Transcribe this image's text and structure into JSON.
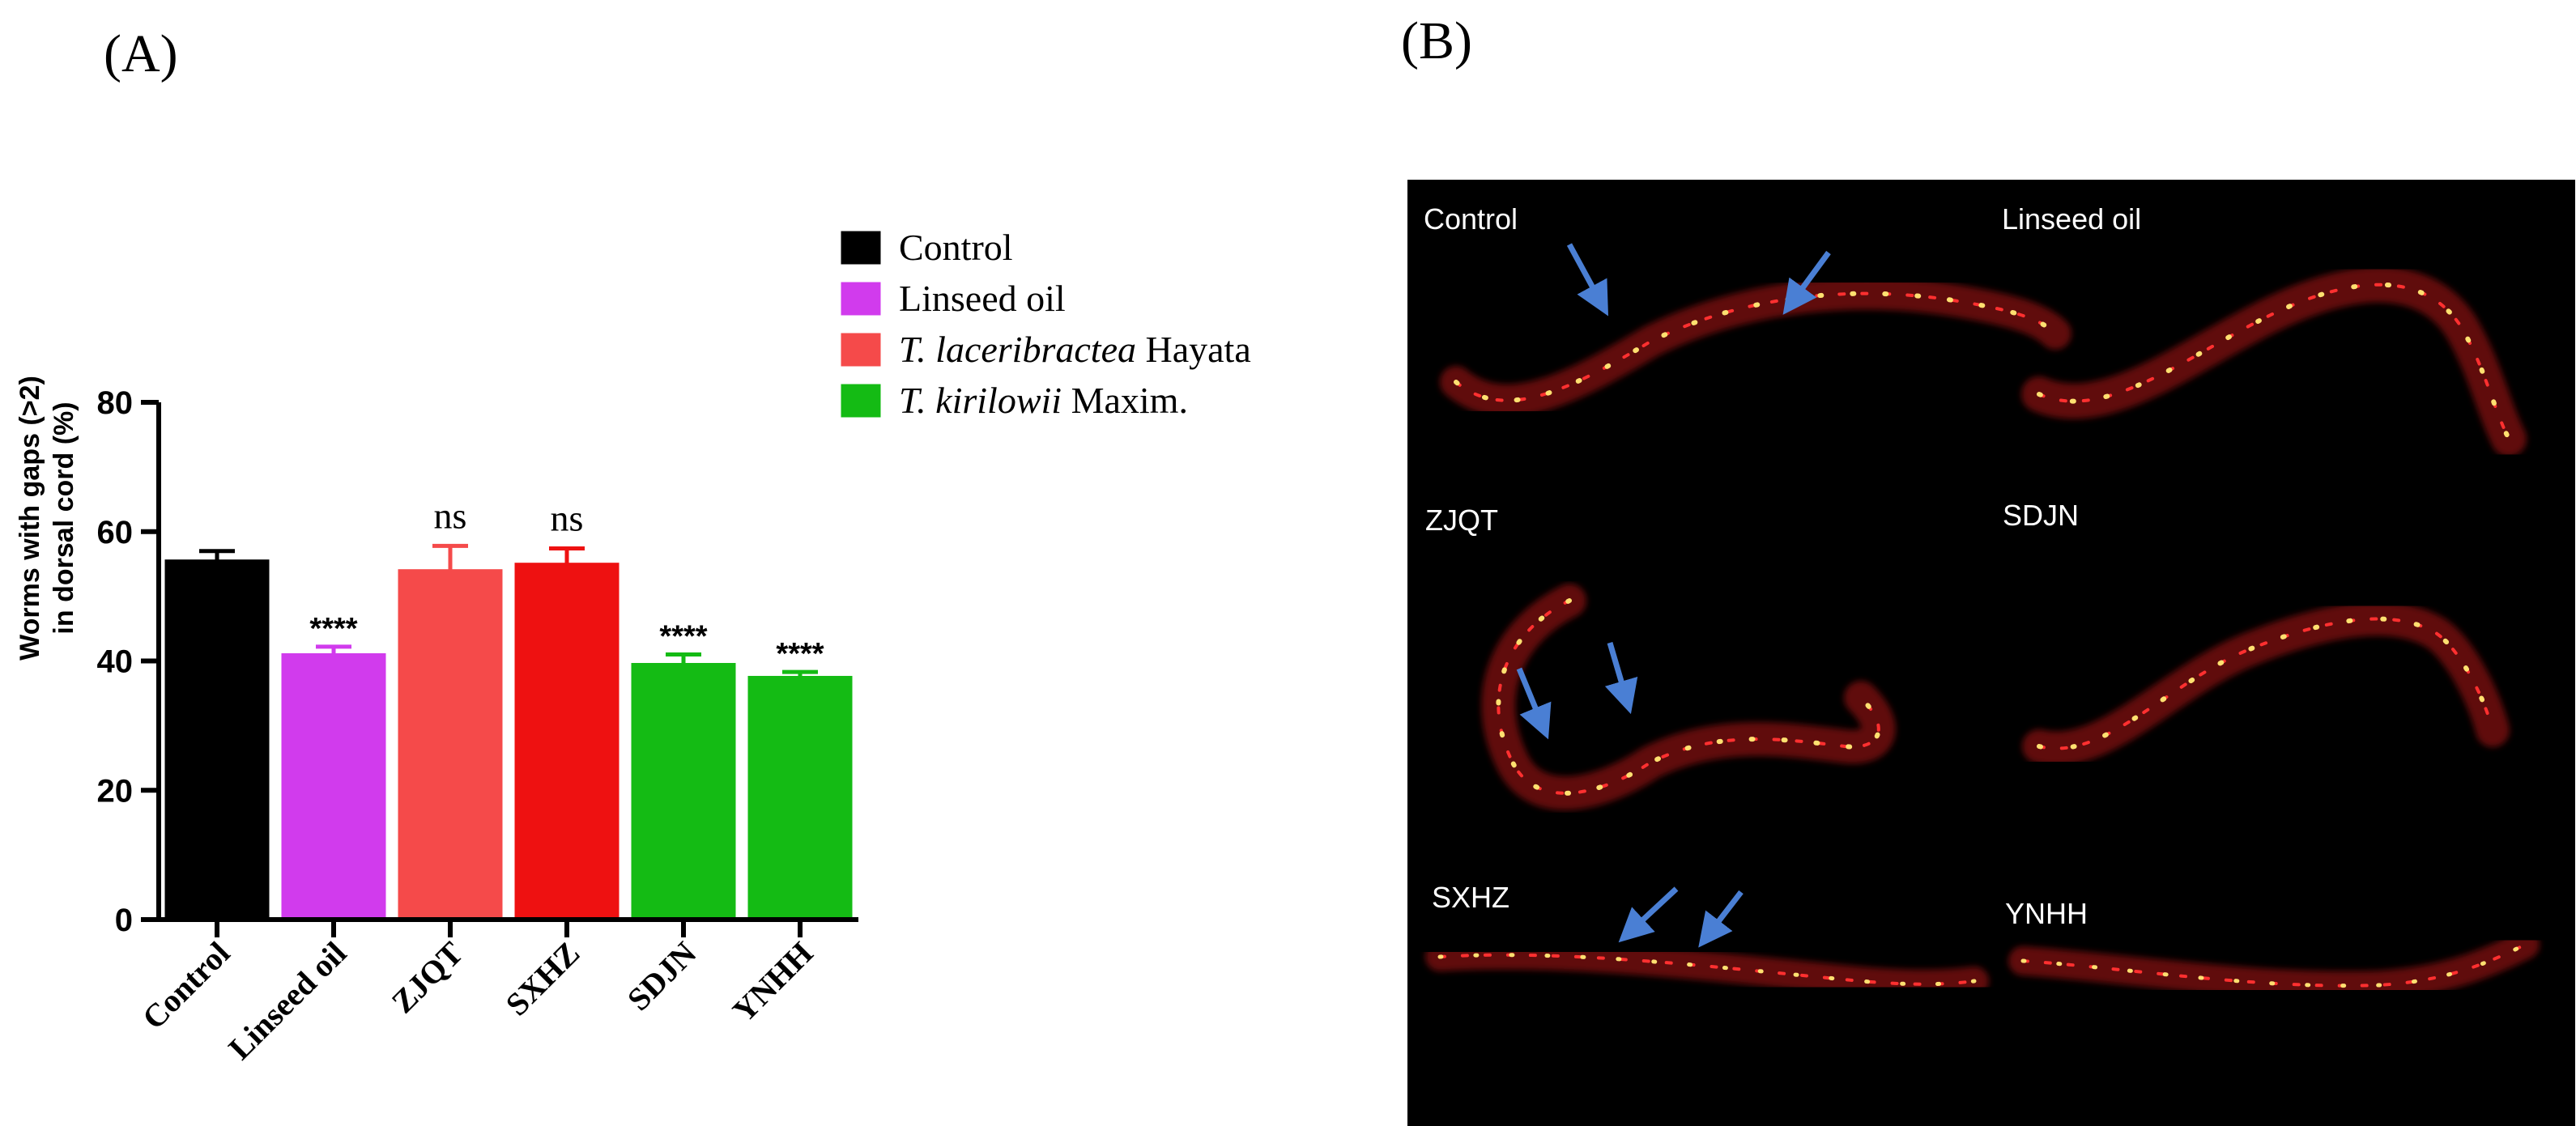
{
  "panel_a_label": "(A)",
  "panel_b_label": "(B)",
  "chart_data": {
    "type": "bar",
    "categories": [
      "Control",
      "Linseed oil",
      "ZJQT",
      "SXHZ",
      "SDJN",
      "YNHH"
    ],
    "values": [
      55.5,
      41,
      54,
      55,
      39.5,
      37.5
    ],
    "errors": [
      1.5,
      1.2,
      3.8,
      2.4,
      1.5,
      0.8
    ],
    "significance": [
      "",
      "****",
      "ns",
      "ns",
      "****",
      "****"
    ],
    "bar_colors": [
      "#000000",
      "#d13bed",
      "#f54a4a",
      "#ee1111",
      "#14bb14",
      "#14bb14"
    ],
    "ylabel_line1": "Worms with gaps (>2)",
    "ylabel_line2": "in dorsal cord (%)",
    "ylim": [
      0,
      80
    ],
    "yticks": [
      0,
      20,
      40,
      60,
      80
    ],
    "legend": [
      {
        "italic": "",
        "text": "Control",
        "color": "#000000"
      },
      {
        "italic": "",
        "text": "Linseed oil",
        "color": "#d13bed"
      },
      {
        "italic": "T. laceribractea",
        "text": " Hayata",
        "color": "#f54a4a"
      },
      {
        "italic": "T. kirilowii",
        "text": " Maxim.",
        "color": "#14bb14"
      }
    ]
  },
  "micrographs": [
    {
      "label": "Control"
    },
    {
      "label": "Linseed oil"
    },
    {
      "label": "ZJQT"
    },
    {
      "label": "SDJN"
    },
    {
      "label": "SXHZ"
    },
    {
      "label": "YNHH"
    }
  ]
}
